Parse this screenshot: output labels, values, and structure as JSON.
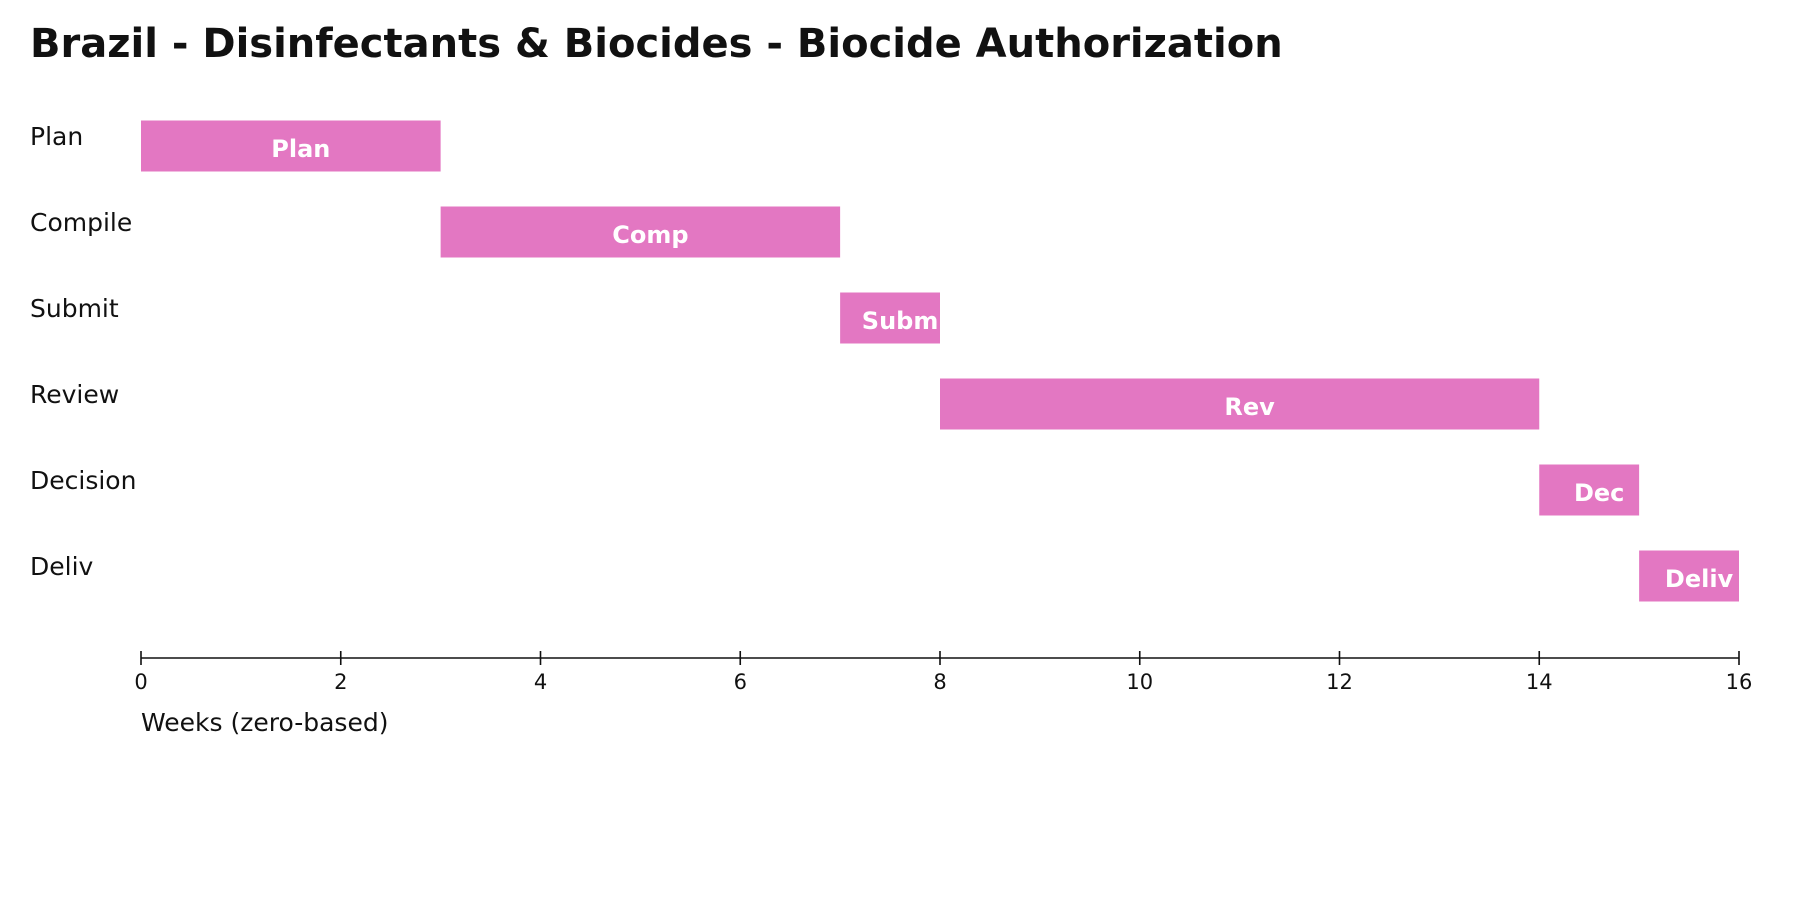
{
  "chart_data": {
    "type": "gantt",
    "title": "Brazil - Disinfectants & Biocides - Biocide Authorization",
    "categories": [
      "Plan",
      "Compile",
      "Submit",
      "Review",
      "Decision",
      "Deliv"
    ],
    "bar_labels": [
      "Plan",
      "Comp",
      "Subm",
      "Rev",
      "Dec",
      "Deliv"
    ],
    "start": [
      0,
      3,
      7,
      8,
      14,
      15
    ],
    "end": [
      3,
      7,
      8,
      14,
      15,
      16
    ],
    "color": "#e377c2",
    "xlabel": "Weeks (zero-based)",
    "xlim": [
      0,
      16
    ],
    "xticks": [
      0,
      2,
      4,
      6,
      8,
      10,
      12,
      14,
      16
    ]
  }
}
